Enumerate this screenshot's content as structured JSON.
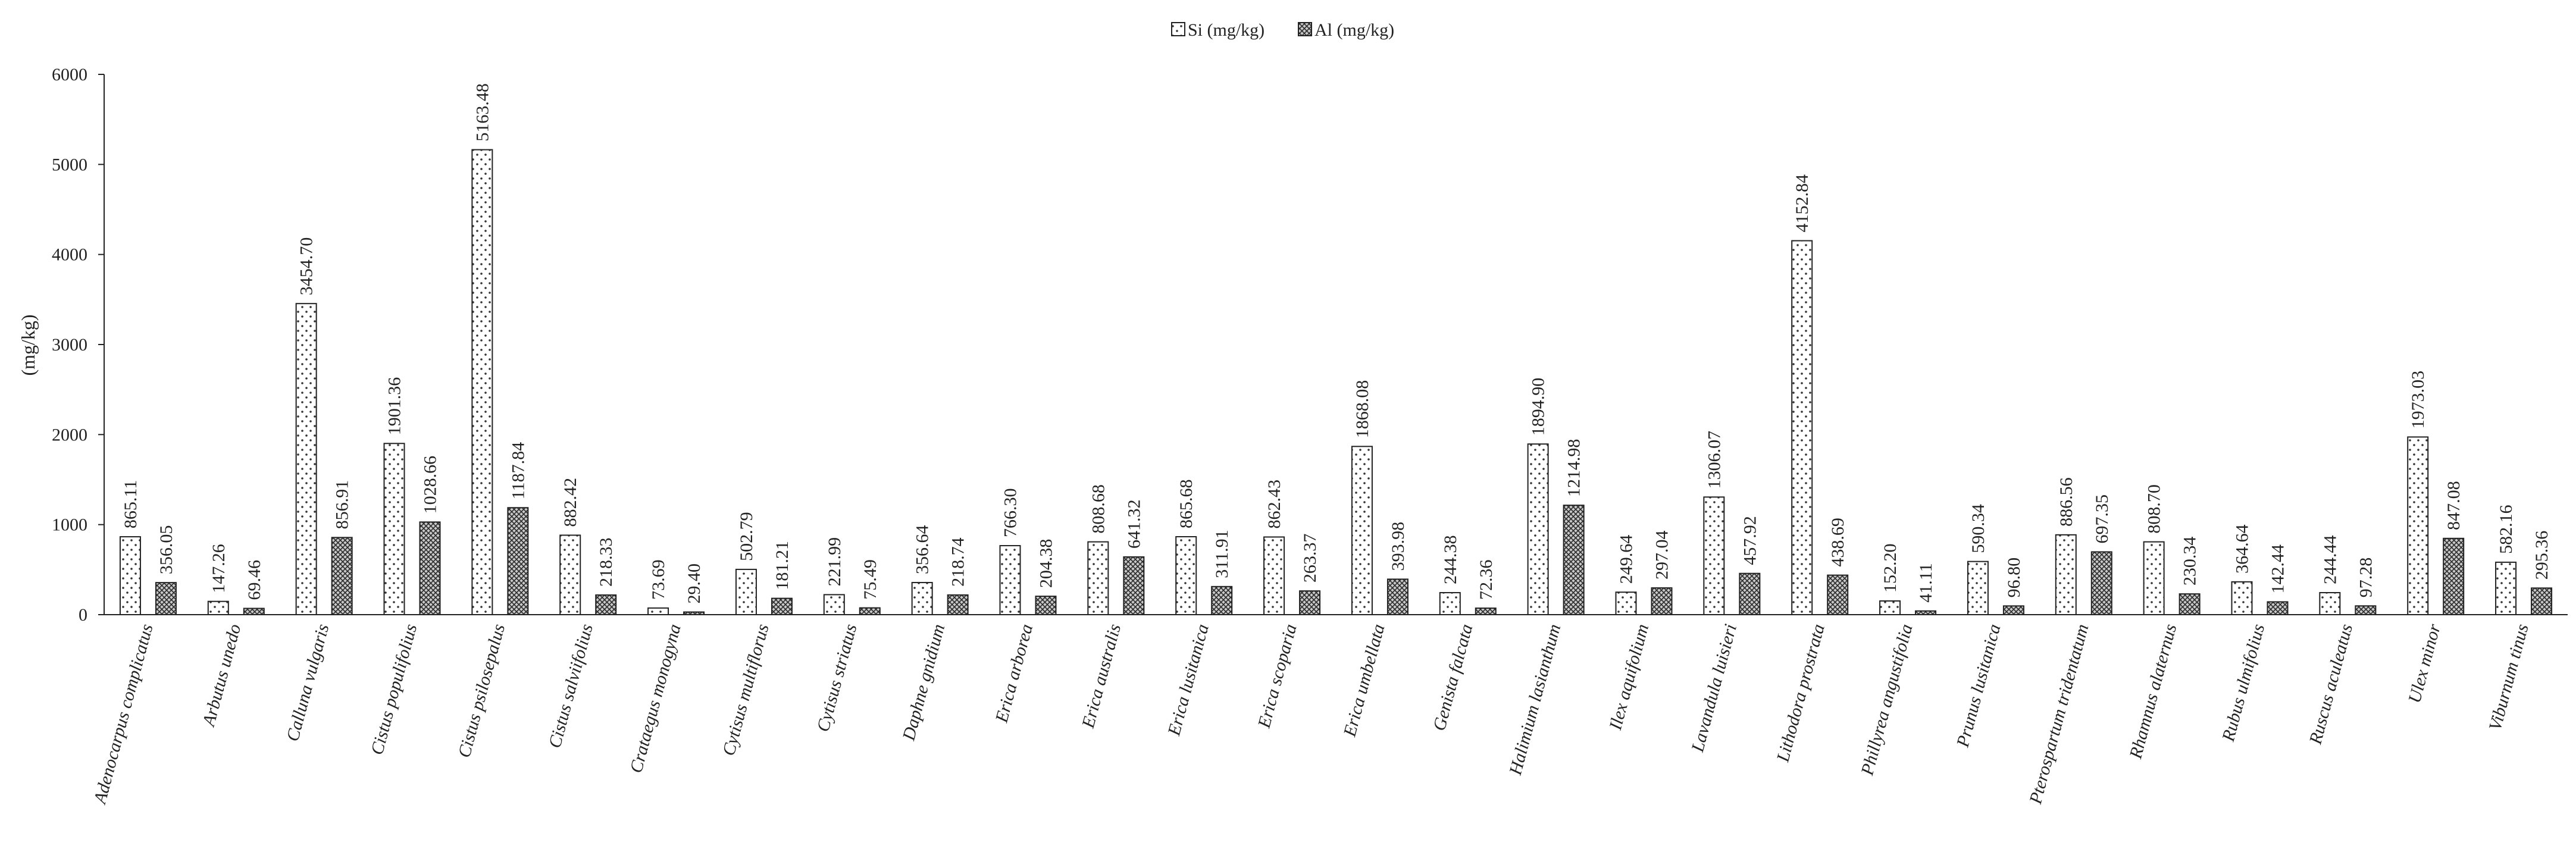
{
  "chart_data": {
    "type": "bar",
    "ylabel": "(mg/kg)",
    "ylim": [
      0,
      6000
    ],
    "yticks": [
      "0",
      "1000",
      "2000",
      "3000",
      "4000",
      "5000",
      "6000"
    ],
    "grid": false,
    "legend_position": "top-center",
    "categories": [
      "Adenocarpus complicatus",
      "Arbutus unedo",
      "Calluna vulgaris",
      "Cistus populifolius",
      "Cistus psilosepalus",
      "Cistus salviifolius",
      "Crataegus monogyna",
      "Cytisus multiflorus",
      "Cytisus striatus",
      "Daphne gnidium",
      "Erica arborea",
      "Erica australis",
      "Erica lusitanica",
      "Erica scoparia",
      "Erica umbellata",
      "Genista falcata",
      "Halimium lasianthum",
      "Ilex aquifolium",
      "Lavandula luisieri",
      "Lithodora prostrata",
      "Phillyrea angustifolia",
      "Prunus lusitanica",
      "Pterospartum tridentatum",
      "Rhamnus alaternus",
      "Rubus ulmifolius",
      "Ruscus aculeatus",
      "Ulex minor",
      "Viburnum tinus"
    ],
    "series": [
      {
        "name": "Si (mg/kg)",
        "pattern": "dots",
        "values": [
          865.11,
          147.26,
          3454.7,
          1901.36,
          5163.48,
          882.42,
          73.69,
          502.79,
          221.99,
          356.64,
          766.3,
          808.68,
          865.68,
          862.43,
          1868.08,
          244.38,
          1894.9,
          249.64,
          1306.07,
          4152.84,
          152.2,
          590.34,
          886.56,
          808.7,
          364.64,
          244.44,
          1973.03,
          582.16
        ],
        "labels": [
          "865.11",
          "147.26",
          "3454.70",
          "1901.36",
          "5163.48",
          "882.42",
          "73.69",
          "502.79",
          "221.99",
          "356.64",
          "766.30",
          "808.68",
          "865.68",
          "862.43",
          "1868.08",
          "244.38",
          "1894.90",
          "249.64",
          "1306.07",
          "4152.84",
          "152.20",
          "590.34",
          "886.56",
          "808.70",
          "364.64",
          "244.44",
          "1973.03",
          "582.16"
        ]
      },
      {
        "name": "Al (mg/kg)",
        "pattern": "crosshatch",
        "values": [
          356.05,
          69.46,
          856.91,
          1028.66,
          1187.84,
          218.33,
          29.4,
          181.21,
          75.49,
          218.74,
          204.38,
          641.32,
          311.91,
          263.37,
          393.98,
          72.36,
          1214.98,
          297.04,
          457.92,
          438.69,
          41.11,
          96.8,
          697.35,
          230.34,
          142.44,
          97.28,
          847.08,
          295.36
        ],
        "labels": [
          "356.05",
          "69.46",
          "856.91",
          "1028.66",
          "1187.84",
          "218.33",
          "29.40",
          "181.21",
          "75.49",
          "218.74",
          "204.38",
          "641.32",
          "311.91",
          "263.37",
          "393.98",
          "72.36",
          "1214.98",
          "297.04",
          "457.92",
          "438.69",
          "41.11",
          "96.80",
          "697.35",
          "230.34",
          "142.44",
          "97.28",
          "847.08",
          "295.36"
        ]
      }
    ]
  }
}
